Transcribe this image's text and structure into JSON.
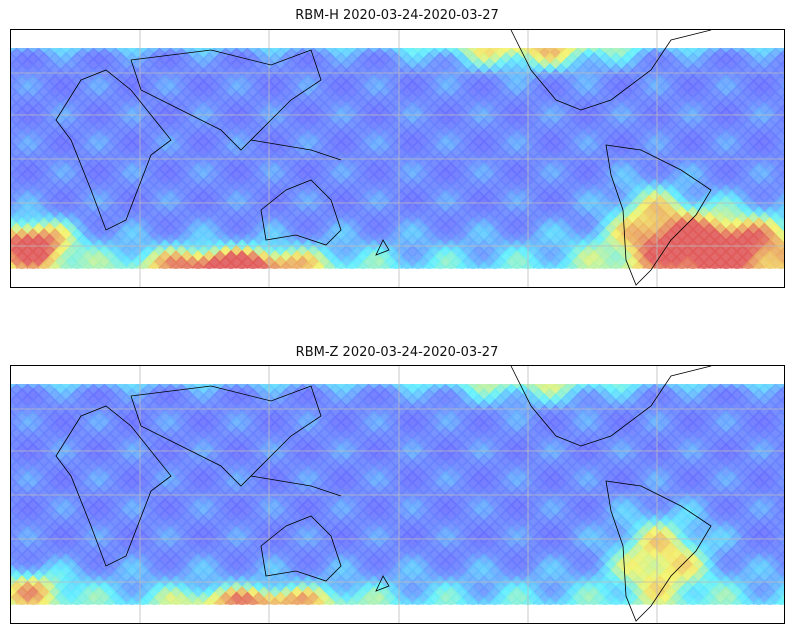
{
  "figure": {
    "panels": [
      {
        "title": "RBM-H 2020-03-24-2020-03-27",
        "variant": "H"
      },
      {
        "title": "RBM-Z 2020-03-24-2020-03-27",
        "variant": "Z"
      }
    ]
  },
  "colors": {
    "low": "#6a5cff",
    "mid": "#5ef0ff",
    "high_mid": "#f4f46a",
    "high": "#e05060",
    "grid": "#bbbbbb",
    "coast": "#000000"
  }
}
